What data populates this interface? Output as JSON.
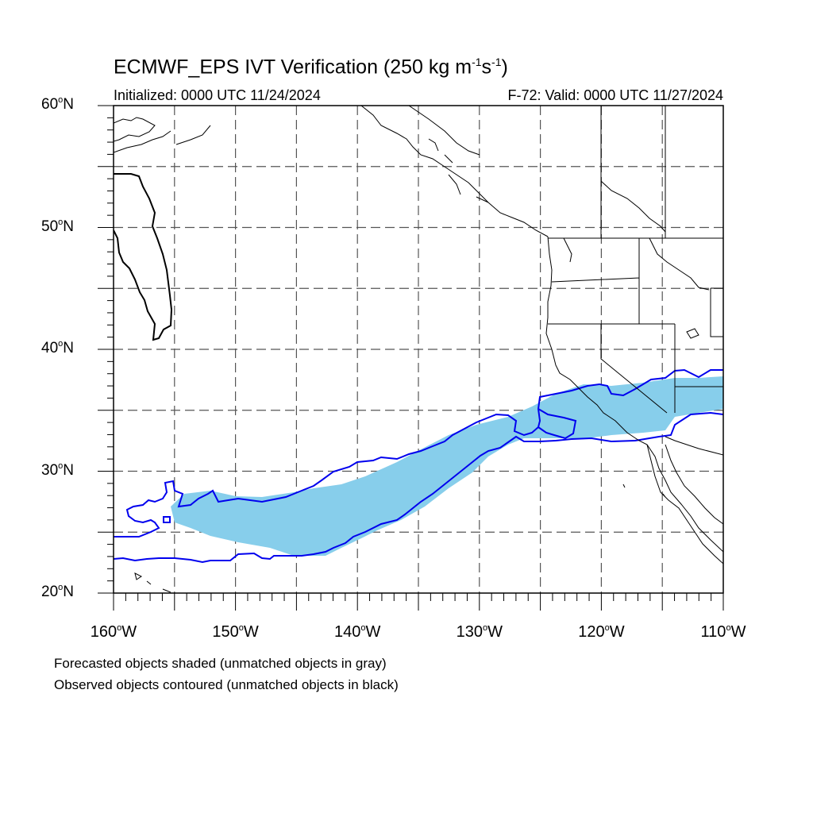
{
  "title": {
    "prefix": "ECMWF_EPS IVT Verification (250 kg m",
    "exp1": "-1",
    "mid": "s",
    "exp2": "-1",
    "suffix": ")"
  },
  "subtitle_left": "Initialized: 0000 UTC 11/24/2024",
  "subtitle_right": "F-72: Valid: 0000 UTC 11/27/2024",
  "map": {
    "lon_range": [
      -160,
      -110
    ],
    "lat_range": [
      20,
      60
    ],
    "lat_labels": [
      {
        "value": 60,
        "text": "60",
        "hemi": "N"
      },
      {
        "value": 50,
        "text": "50",
        "hemi": "N"
      },
      {
        "value": 40,
        "text": "40",
        "hemi": "N"
      },
      {
        "value": 30,
        "text": "30",
        "hemi": "N"
      },
      {
        "value": 20,
        "text": "20",
        "hemi": "N"
      }
    ],
    "lon_labels": [
      {
        "value": -160,
        "text": "160",
        "hemi": "W"
      },
      {
        "value": -150,
        "text": "150",
        "hemi": "W"
      },
      {
        "value": -140,
        "text": "140",
        "hemi": "W"
      },
      {
        "value": -130,
        "text": "130",
        "hemi": "W"
      },
      {
        "value": -120,
        "text": "120",
        "hemi": "W"
      },
      {
        "value": -110,
        "text": "110",
        "hemi": "W"
      }
    ],
    "grid_lat_step": 5,
    "grid_lon_step": 5,
    "colors": {
      "forecast_fill": "#87ceeb",
      "observed_matched": "#0000ee",
      "observed_unmatched": "#000000",
      "coastline": "#000000",
      "grid": "#555555"
    }
  },
  "legend": {
    "line1": "Forecasted objects shaded (unmatched objects in gray)",
    "line2": "Observed objects contoured (unmatched objects in black)"
  }
}
